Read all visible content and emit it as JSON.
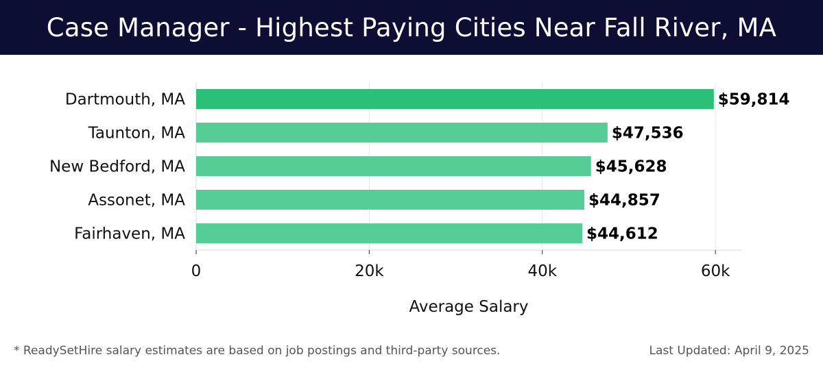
{
  "header": {
    "title": "Case Manager - Highest Paying Cities Near Fall River, MA"
  },
  "footer": {
    "note": "* ReadySetHire salary estimates are based on job postings and third-party sources.",
    "updated": "Last Updated: April 9, 2025"
  },
  "colors": {
    "header_bg": "#0c0f33",
    "bar_top": "#2bbf78",
    "bar": "#57cd96"
  },
  "chart_data": {
    "type": "bar",
    "orientation": "horizontal",
    "categories": [
      "Dartmouth, MA",
      "Taunton, MA",
      "New Bedford, MA",
      "Assonet, MA",
      "Fairhaven, MA"
    ],
    "values": [
      59814,
      47536,
      45628,
      44857,
      44612
    ],
    "value_labels": [
      "$59,814",
      "$47,536",
      "$45,628",
      "$44,857",
      "$44,612"
    ],
    "xlabel": "Average Salary",
    "ylabel": "",
    "xlim": [
      0,
      63000
    ],
    "xticks": [
      0,
      20000,
      40000,
      60000
    ],
    "xtick_labels": [
      "0",
      "20k",
      "40k",
      "60k"
    ],
    "grid": true
  }
}
